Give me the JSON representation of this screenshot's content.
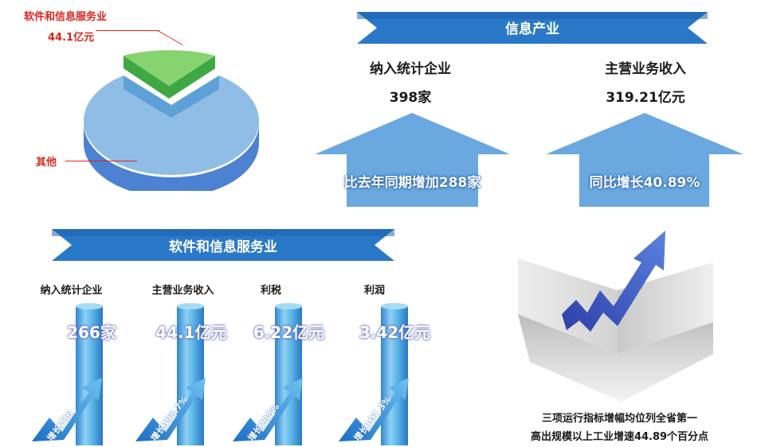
{
  "pie": {
    "slices": [
      {
        "label": "软件和信息服务业",
        "value_label": "44.1亿元",
        "value": 44.1,
        "color": "#7ccf6a"
      },
      {
        "label": "其他",
        "value": 275.11,
        "color": "#8fbde6"
      }
    ]
  },
  "industry": {
    "banner": "信息产业",
    "left": {
      "title": "纳入统计企业",
      "value": "398家",
      "arrow_text": "比去年同期增加288家"
    },
    "right": {
      "title": "主营业务收入",
      "value": "319.21亿元",
      "arrow_text": "同比增长40.89%"
    }
  },
  "software": {
    "banner": "软件和信息服务业",
    "columns": [
      {
        "label": "纳入统计企业",
        "value": "266家",
        "growth": "增长236"
      },
      {
        "label": "主营业务收入",
        "value": "44.1亿元",
        "growth": "增长398.7%"
      },
      {
        "label": "利税",
        "value": "6.22亿元",
        "growth": "增长288%"
      },
      {
        "label": "利润",
        "value": "3.42亿元",
        "growth": "增长107.3%"
      }
    ]
  },
  "summary": {
    "line1": "三项运行指标增幅均位列全省第一",
    "line2": "高出规模以上工业增速44.89个百分点"
  },
  "colors": {
    "banner": "#2a79c8",
    "arrow": "#6aa8df",
    "column": "#4aa9e0",
    "trend_arrow": "#3f63c8"
  },
  "chart_data": [
    {
      "type": "pie",
      "categories": [
        "软件和信息服务业",
        "其他"
      ],
      "values": [
        44.1,
        275.11
      ],
      "title": ""
    },
    {
      "type": "bar",
      "categories": [
        "纳入统计企业",
        "主营业务收入",
        "利税",
        "利润"
      ],
      "series": [
        {
          "values": [
            266,
            44.1,
            6.22,
            3.42
          ]
        }
      ],
      "title": "软件和信息服务业"
    }
  ]
}
